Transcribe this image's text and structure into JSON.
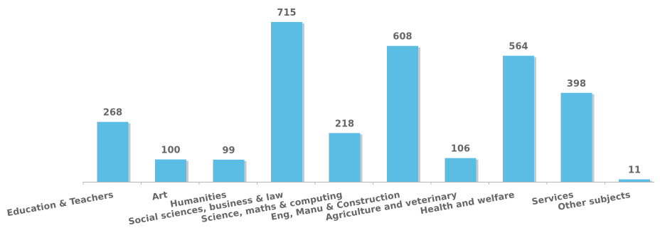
{
  "chart_data": {
    "type": "bar",
    "categories": [
      "Education & Teachers",
      "Art",
      "Humanities",
      "Social sciences, business & law",
      "Science, maths & computing",
      "Eng, Manu & Construction",
      "Agriculture and veterinary",
      "Health and welfare",
      "Services",
      "Other subjects"
    ],
    "values": [
      268,
      100,
      99,
      715,
      218,
      608,
      106,
      564,
      398,
      11
    ],
    "value_labels": [
      "268",
      "100",
      "99",
      "715",
      "218",
      "608",
      "106",
      "564",
      "398",
      "11"
    ],
    "title": "",
    "xlabel": "",
    "ylabel": "",
    "ylim": [
      0,
      715
    ],
    "grid": false,
    "legend": "none",
    "colors": {
      "bar": "#5BBCE4",
      "bar_shadow": "#c9c9c9",
      "axis": "#b7b7b7",
      "label": "#666666"
    }
  }
}
